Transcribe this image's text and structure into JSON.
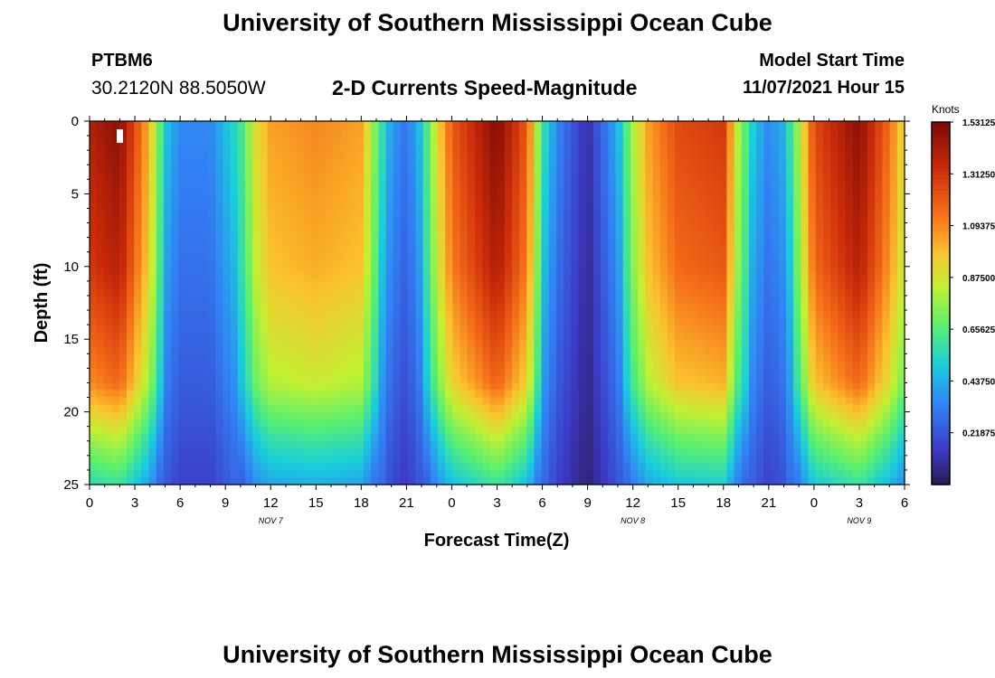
{
  "header": {
    "main_title": "University of Southern Mississippi Ocean Cube",
    "station_name": "PTBM6",
    "station_coords": "30.2120N  88.5050W",
    "chart_title": "2-D Currents Speed-Magnitude",
    "model_start_label": "Model Start Time",
    "model_start_value": "11/07/2021 Hour 15"
  },
  "footer": {
    "bottom_title": "University of Southern Mississippi Ocean Cube"
  },
  "chart_data": {
    "type": "heatmap",
    "title": "2-D Currents Speed-Magnitude",
    "xlabel": "Forecast Time(Z)",
    "ylabel": "Depth (ft)",
    "x_range_hours": [
      0,
      54
    ],
    "y_range_ft": [
      0,
      25
    ],
    "x_tick_labels": [
      "0",
      "3",
      "6",
      "9",
      "12",
      "15",
      "18",
      "21",
      "0",
      "3",
      "6",
      "9",
      "12",
      "15",
      "18",
      "21",
      "0",
      "3",
      "6"
    ],
    "y_tick_labels": [
      "0",
      "5",
      "10",
      "15",
      "20",
      "25"
    ],
    "date_labels": [
      {
        "label": "NOV 7",
        "hour": 12
      },
      {
        "label": "NOV 8",
        "hour": 36
      },
      {
        "label": "NOV 9",
        "hour": 51
      }
    ],
    "colorbar": {
      "units": "Knots",
      "min": 0.0,
      "max": 1.53125,
      "tick_labels": [
        "1.53125",
        "1.31250",
        "1.09375",
        "0.87500",
        "0.65625",
        "0.43750",
        "0.21875"
      ],
      "tick_values": [
        1.53125,
        1.3125,
        1.09375,
        0.875,
        0.65625,
        0.4375,
        0.21875
      ]
    },
    "surface_speed_profile": [
      {
        "hour": 0,
        "knots": 1.4
      },
      {
        "hour": 2,
        "knots": 1.5
      },
      {
        "hour": 4,
        "knots": 1.0
      },
      {
        "hour": 5,
        "knots": 0.5
      },
      {
        "hour": 6,
        "knots": 0.35
      },
      {
        "hour": 8,
        "knots": 0.35
      },
      {
        "hour": 10,
        "knots": 0.6
      },
      {
        "hour": 11,
        "knots": 0.9
      },
      {
        "hour": 12,
        "knots": 1.05
      },
      {
        "hour": 15,
        "knots": 1.1
      },
      {
        "hour": 18,
        "knots": 1.05
      },
      {
        "hour": 19,
        "knots": 0.7
      },
      {
        "hour": 20,
        "knots": 0.4
      },
      {
        "hour": 21,
        "knots": 0.3
      },
      {
        "hour": 22,
        "knots": 0.5
      },
      {
        "hour": 23,
        "knots": 0.9
      },
      {
        "hour": 24,
        "knots": 1.2
      },
      {
        "hour": 27,
        "knots": 1.52
      },
      {
        "hour": 29,
        "knots": 1.2
      },
      {
        "hour": 30,
        "knots": 0.6
      },
      {
        "hour": 31,
        "knots": 0.35
      },
      {
        "hour": 33,
        "knots": 0.1
      },
      {
        "hour": 35,
        "knots": 0.45
      },
      {
        "hour": 36,
        "knots": 0.8
      },
      {
        "hour": 37,
        "knots": 1.05
      },
      {
        "hour": 39,
        "knots": 1.25
      },
      {
        "hour": 42,
        "knots": 1.3
      },
      {
        "hour": 43,
        "knots": 0.8
      },
      {
        "hour": 44,
        "knots": 0.5
      },
      {
        "hour": 45,
        "knots": 0.35
      },
      {
        "hour": 46,
        "knots": 0.45
      },
      {
        "hour": 47,
        "knots": 0.8
      },
      {
        "hour": 48,
        "knots": 1.25
      },
      {
        "hour": 51,
        "knots": 1.5
      },
      {
        "hour": 53,
        "knots": 1.15
      },
      {
        "hour": 54,
        "knots": 0.9
      }
    ],
    "depth_attenuation": [
      {
        "depth_ft": 0,
        "factor": 1.0
      },
      {
        "depth_ft": 10,
        "factor": 0.93
      },
      {
        "depth_ft": 18,
        "factor": 0.78
      },
      {
        "depth_ft": 22,
        "factor": 0.55
      },
      {
        "depth_ft": 25,
        "factor": 0.4
      }
    ]
  }
}
